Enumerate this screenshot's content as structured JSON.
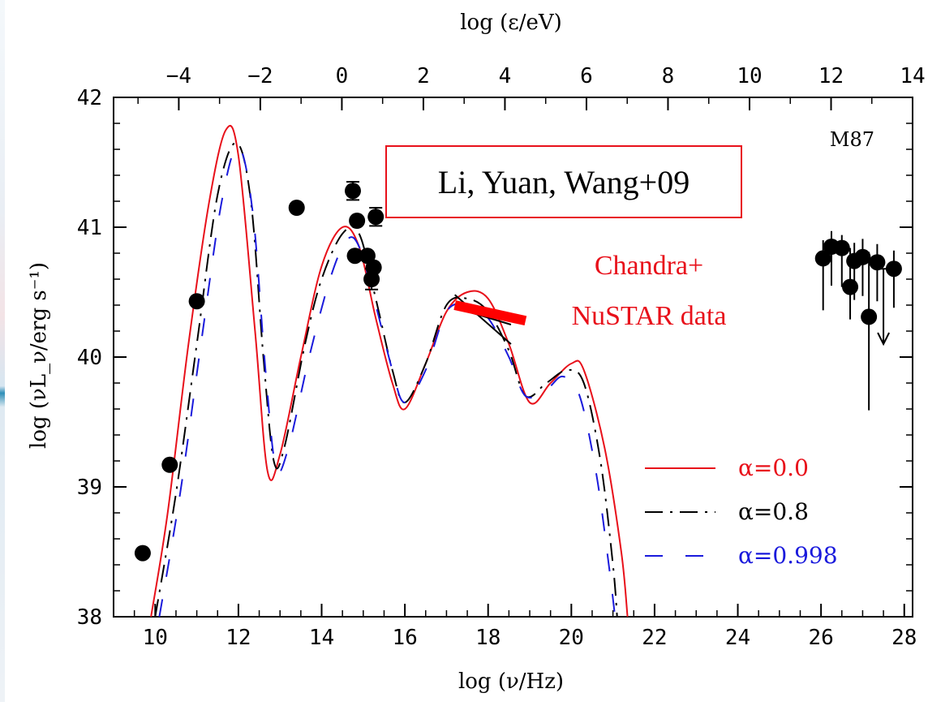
{
  "chart_data": {
    "type": "line",
    "object_label": "M87",
    "title_box": "Li, Yuan, Wang+09",
    "annotation": [
      "Chandra+",
      "NuSTAR data"
    ],
    "xlabel": "log (ν/Hz)",
    "ylabel": "log (νL_ν/erg s⁻¹)",
    "top_xlabel": "log (ε/eV)",
    "xlim": [
      9,
      28.2
    ],
    "ylim": [
      38,
      42
    ],
    "top_xlim": [
      -5.6,
      14
    ],
    "x_ticks": [
      10,
      12,
      14,
      16,
      18,
      20,
      22,
      24,
      26,
      28
    ],
    "x_tick_labels": [
      "10",
      "12",
      "14",
      "16",
      "18",
      "20",
      "22",
      "24",
      "26",
      "28"
    ],
    "y_ticks": [
      38,
      39,
      40,
      41,
      42
    ],
    "y_tick_labels": [
      "38",
      "39",
      "40",
      "41",
      "42"
    ],
    "top_ticks": [
      -4,
      -2,
      0,
      2,
      4,
      6,
      8,
      10,
      12,
      14
    ],
    "top_tick_labels": [
      "−4",
      "−2",
      "0",
      "2",
      "4",
      "6",
      "8",
      "10",
      "12",
      "14"
    ],
    "series": [
      {
        "name": "α=0.0",
        "color": "#e8101a",
        "dash": "solid",
        "x": [
          9.9,
          10.3,
          10.8,
          11.3,
          11.7,
          12.0,
          12.4,
          12.7,
          13.0,
          13.5,
          14.0,
          14.5,
          14.9,
          15.3,
          15.7,
          16.0,
          16.5,
          17.0,
          17.5,
          18.0,
          18.5,
          19.0,
          19.5,
          20.0,
          20.3,
          20.8,
          21.2,
          21.35
        ],
        "values": [
          38.0,
          38.8,
          40.1,
          41.2,
          41.75,
          41.55,
          40.2,
          39.12,
          39.25,
          40.0,
          40.7,
          41.0,
          40.85,
          40.3,
          39.8,
          39.6,
          39.95,
          40.35,
          40.5,
          40.45,
          40.1,
          39.65,
          39.8,
          39.95,
          39.9,
          39.3,
          38.5,
          38.0
        ]
      },
      {
        "name": "α=0.8",
        "color": "#000000",
        "dash": "dashdot",
        "x": [
          10.0,
          10.5,
          11.0,
          11.5,
          11.95,
          12.3,
          12.6,
          12.85,
          13.1,
          13.6,
          14.0,
          14.5,
          14.9,
          15.3,
          15.7,
          16.0,
          16.5,
          17.0,
          17.5,
          18.0,
          18.5,
          18.9,
          19.4,
          19.9,
          20.3,
          20.7,
          21.0,
          21.1
        ],
        "values": [
          38.0,
          38.95,
          40.1,
          41.25,
          41.65,
          41.2,
          40.0,
          39.2,
          39.3,
          40.1,
          40.6,
          40.95,
          40.95,
          40.45,
          39.9,
          39.65,
          39.95,
          40.4,
          40.45,
          40.35,
          40.05,
          39.7,
          39.8,
          39.9,
          39.8,
          39.2,
          38.4,
          38.0
        ]
      },
      {
        "name": "α=0.998",
        "color": "#1a1adc",
        "dash": "dashed",
        "x": [
          10.1,
          10.6,
          11.1,
          11.6,
          12.0,
          12.35,
          12.65,
          12.9,
          13.2,
          13.7,
          14.2,
          14.6,
          14.9,
          15.3,
          15.7,
          16.0,
          16.5,
          17.0,
          17.5,
          18.0,
          18.5,
          18.9,
          19.4,
          19.8,
          20.2,
          20.6,
          20.9,
          21.05
        ],
        "values": [
          38.0,
          38.95,
          40.1,
          41.2,
          41.62,
          41.1,
          39.9,
          39.15,
          39.3,
          40.0,
          40.6,
          40.9,
          40.85,
          40.4,
          39.9,
          39.65,
          39.9,
          40.35,
          40.4,
          40.3,
          40.0,
          39.7,
          39.75,
          39.85,
          39.7,
          39.1,
          38.4,
          38.0
        ]
      }
    ],
    "data_points": [
      {
        "x": 9.7,
        "y": 38.49
      },
      {
        "x": 10.35,
        "y": 39.17
      },
      {
        "x": 11.0,
        "y": 40.43
      },
      {
        "x": 13.4,
        "y": 41.15
      },
      {
        "x": 14.75,
        "y": 41.28,
        "yerr": 0.07
      },
      {
        "x": 14.85,
        "y": 41.05
      },
      {
        "x": 14.8,
        "y": 40.78
      },
      {
        "x": 15.1,
        "y": 40.78
      },
      {
        "x": 15.25,
        "y": 40.69
      },
      {
        "x": 15.3,
        "y": 41.08,
        "yerr": 0.07
      },
      {
        "x": 15.2,
        "y": 40.6,
        "yerr": 0.08
      },
      {
        "x": 26.05,
        "y": 40.76,
        "yerr_up": 0.14,
        "yerr_down": 0.4
      },
      {
        "x": 26.25,
        "y": 40.85,
        "yerr_up": 0.12,
        "yerr_down": 0.3
      },
      {
        "x": 26.5,
        "y": 40.84,
        "yerr_up": 0.1,
        "yerr_down": 0.3
      },
      {
        "x": 26.7,
        "y": 40.54,
        "yerr_up": 0.3,
        "yerr_down": 0.25
      },
      {
        "x": 26.8,
        "y": 40.74,
        "yerr_up": 0.14,
        "yerr_down": 0.3
      },
      {
        "x": 27.0,
        "y": 40.77,
        "yerr_up": 0.14,
        "yerr_down": 0.3
      },
      {
        "x": 27.15,
        "y": 40.31,
        "yerr_up": 0.5,
        "yerr_down": 0.72
      },
      {
        "x": 27.35,
        "y": 40.73,
        "yerr_up": 0.14,
        "yerr_down": 0.3
      },
      {
        "x": 27.75,
        "y": 40.68,
        "yerr_up": 0.14,
        "yerr_down": 0.3
      }
    ],
    "upper_limit": {
      "x": 27.5,
      "y_from": 40.68,
      "y_to": 40.1
    },
    "red_bar": {
      "x": [
        17.2,
        18.9
      ],
      "y": [
        40.4,
        40.28
      ]
    },
    "black_bowtie": [
      {
        "x": [
          17.2,
          18.55
        ],
        "y": [
          40.48,
          40.1
        ]
      },
      {
        "x": [
          17.2,
          18.55
        ],
        "y": [
          40.38,
          40.25
        ]
      }
    ],
    "legend_placement": "lower-right",
    "grid": false
  }
}
